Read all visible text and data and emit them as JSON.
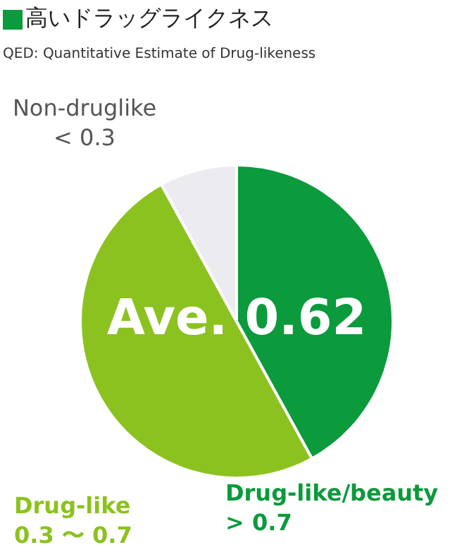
{
  "chart_data": {
    "type": "pie",
    "title": "高いドラッグライクネス",
    "subtitle": "QED: Quantitative Estimate of Drug-likeness",
    "categories": [
      "Drug-like/beauty\n> 0.7",
      "Drug-like\n0.3 〜 0.7",
      "Non-druglike\n< 0.3"
    ],
    "values": [
      42,
      50,
      8
    ],
    "colors": [
      "#0b9a3c",
      "#8cc21f",
      "#ececf0"
    ],
    "annotations": [
      "Ave. 0.62"
    ],
    "legend": false
  }
}
